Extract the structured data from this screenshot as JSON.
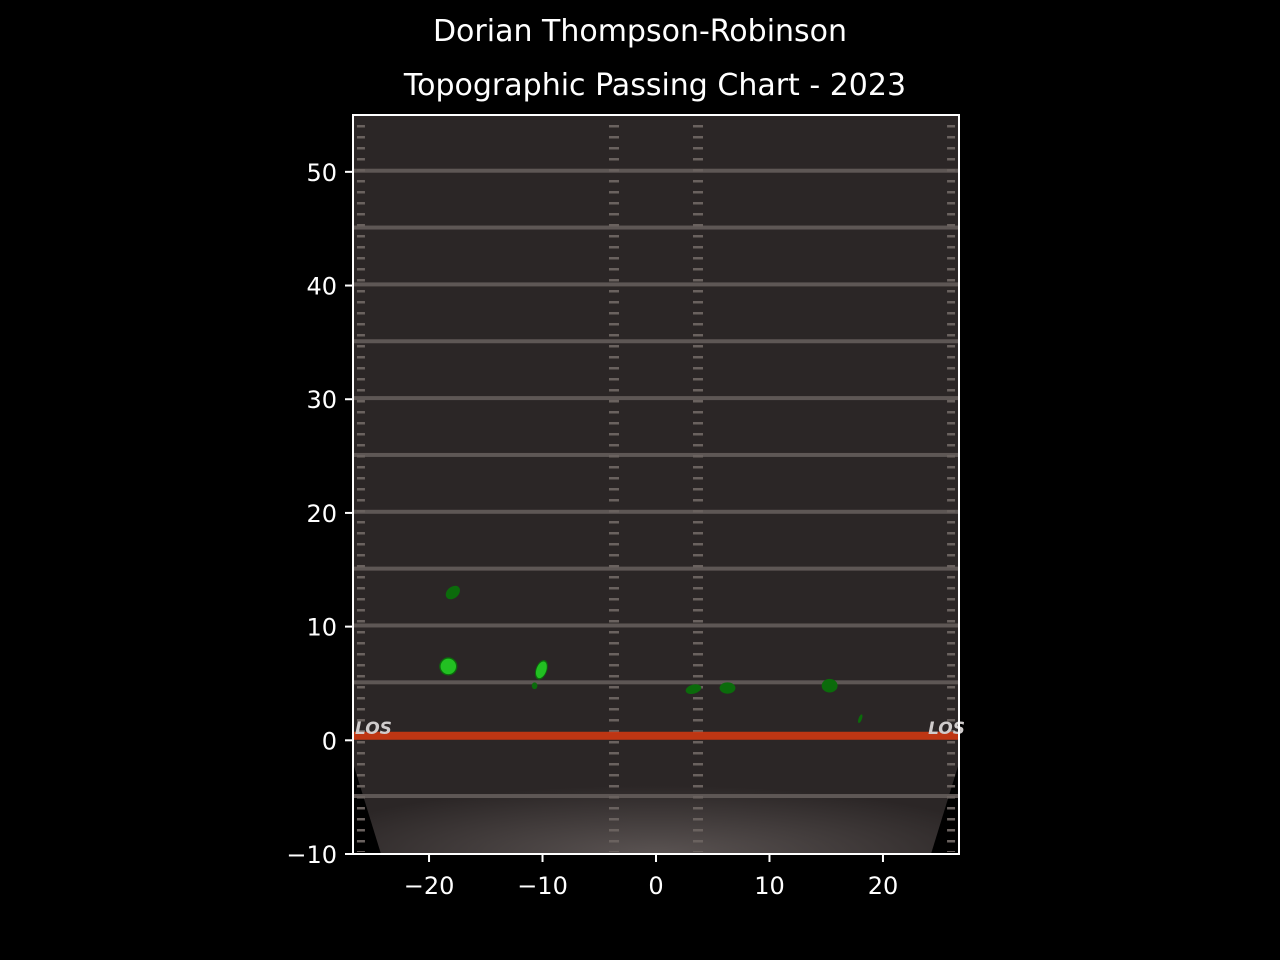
{
  "chart_data": {
    "type": "heatmap",
    "title": "Dorian Thompson-Robinson",
    "subtitle": "Topographic Passing Chart - 2023",
    "xlabel": "",
    "ylabel": "",
    "xlim": [
      -26.7,
      26.7
    ],
    "ylim": [
      -10,
      55
    ],
    "x_ticks": [
      -20,
      -10,
      0,
      10,
      20
    ],
    "x_tick_labels": [
      "−20",
      "−10",
      "0",
      "10",
      "20"
    ],
    "y_ticks": [
      -10,
      0,
      10,
      20,
      30,
      40,
      50
    ],
    "y_tick_labels": [
      "−10",
      "0",
      "10",
      "20",
      "30",
      "40",
      "50"
    ],
    "line_of_scrimmage": 0,
    "los_label": "LOS",
    "grid": false,
    "colors": {
      "background": "#000000",
      "field": "#2b2626",
      "los_line": "#d83a10",
      "density_low": "#0b6b0b",
      "density_high": "#22c022"
    },
    "density_regions": [
      {
        "x": -17.9,
        "y": 13.0,
        "rx": 0.7,
        "ry": 0.5,
        "angle": -40,
        "level": 1
      },
      {
        "x": -18.3,
        "y": 6.5,
        "rx": 0.8,
        "ry": 0.8,
        "angle": 0,
        "level": 3
      },
      {
        "x": -10.1,
        "y": 6.2,
        "rx": 0.5,
        "ry": 0.9,
        "angle": 20,
        "level": 3
      },
      {
        "x": -10.7,
        "y": 4.8,
        "rx": 0.25,
        "ry": 0.3,
        "angle": 0,
        "level": 1
      },
      {
        "x": 3.3,
        "y": 4.5,
        "rx": 0.7,
        "ry": 0.4,
        "angle": -15,
        "level": 1
      },
      {
        "x": 6.3,
        "y": 4.6,
        "rx": 0.7,
        "ry": 0.5,
        "angle": 0,
        "level": 1
      },
      {
        "x": 15.3,
        "y": 4.8,
        "rx": 0.7,
        "ry": 0.6,
        "angle": 0,
        "level": 1
      },
      {
        "x": 18.0,
        "y": 1.9,
        "rx": 0.15,
        "ry": 0.4,
        "angle": 20,
        "level": 1
      }
    ]
  }
}
